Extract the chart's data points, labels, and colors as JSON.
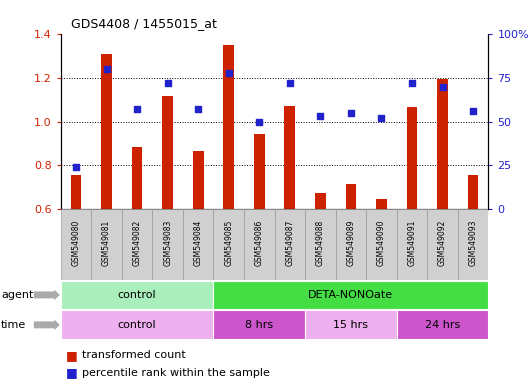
{
  "title": "GDS4408 / 1455015_at",
  "samples": [
    "GSM549080",
    "GSM549081",
    "GSM549082",
    "GSM549083",
    "GSM549084",
    "GSM549085",
    "GSM549086",
    "GSM549087",
    "GSM549088",
    "GSM549089",
    "GSM549090",
    "GSM549091",
    "GSM549092",
    "GSM549093"
  ],
  "transformed_count": [
    0.755,
    1.31,
    0.885,
    1.115,
    0.865,
    1.35,
    0.945,
    1.07,
    0.675,
    0.715,
    0.645,
    1.065,
    1.195,
    0.755
  ],
  "percentile_rank": [
    24,
    80,
    57,
    72,
    57,
    78,
    50,
    72,
    53,
    55,
    52,
    72,
    70,
    56
  ],
  "ylim_left": [
    0.6,
    1.4
  ],
  "ylim_right": [
    0,
    100
  ],
  "yticks_left": [
    0.6,
    0.8,
    1.0,
    1.2,
    1.4
  ],
  "yticks_right": [
    0,
    25,
    50,
    75,
    100
  ],
  "bar_color": "#cc2200",
  "dot_color": "#2222cc",
  "bar_bottom": 0.6,
  "bar_width": 0.35,
  "agent_row": [
    {
      "label": "control",
      "start": 0,
      "end": 5,
      "color": "#aaeebb"
    },
    {
      "label": "DETA-NONOate",
      "start": 5,
      "end": 14,
      "color": "#44dd44"
    }
  ],
  "time_row": [
    {
      "label": "control",
      "start": 0,
      "end": 5,
      "color": "#eeb0ee"
    },
    {
      "label": "8 hrs",
      "start": 5,
      "end": 8,
      "color": "#cc55cc"
    },
    {
      "label": "15 hrs",
      "start": 8,
      "end": 11,
      "color": "#eeb0ee"
    },
    {
      "label": "24 hrs",
      "start": 11,
      "end": 14,
      "color": "#cc55cc"
    }
  ],
  "legend_bar_label": "transformed count",
  "legend_dot_label": "percentile rank within the sample",
  "agent_label": "agent",
  "time_label": "time",
  "left_color": "#cc2200",
  "right_color": "#2222cc",
  "grid_lines": [
    0.8,
    1.0,
    1.2
  ],
  "dot_size": 25
}
